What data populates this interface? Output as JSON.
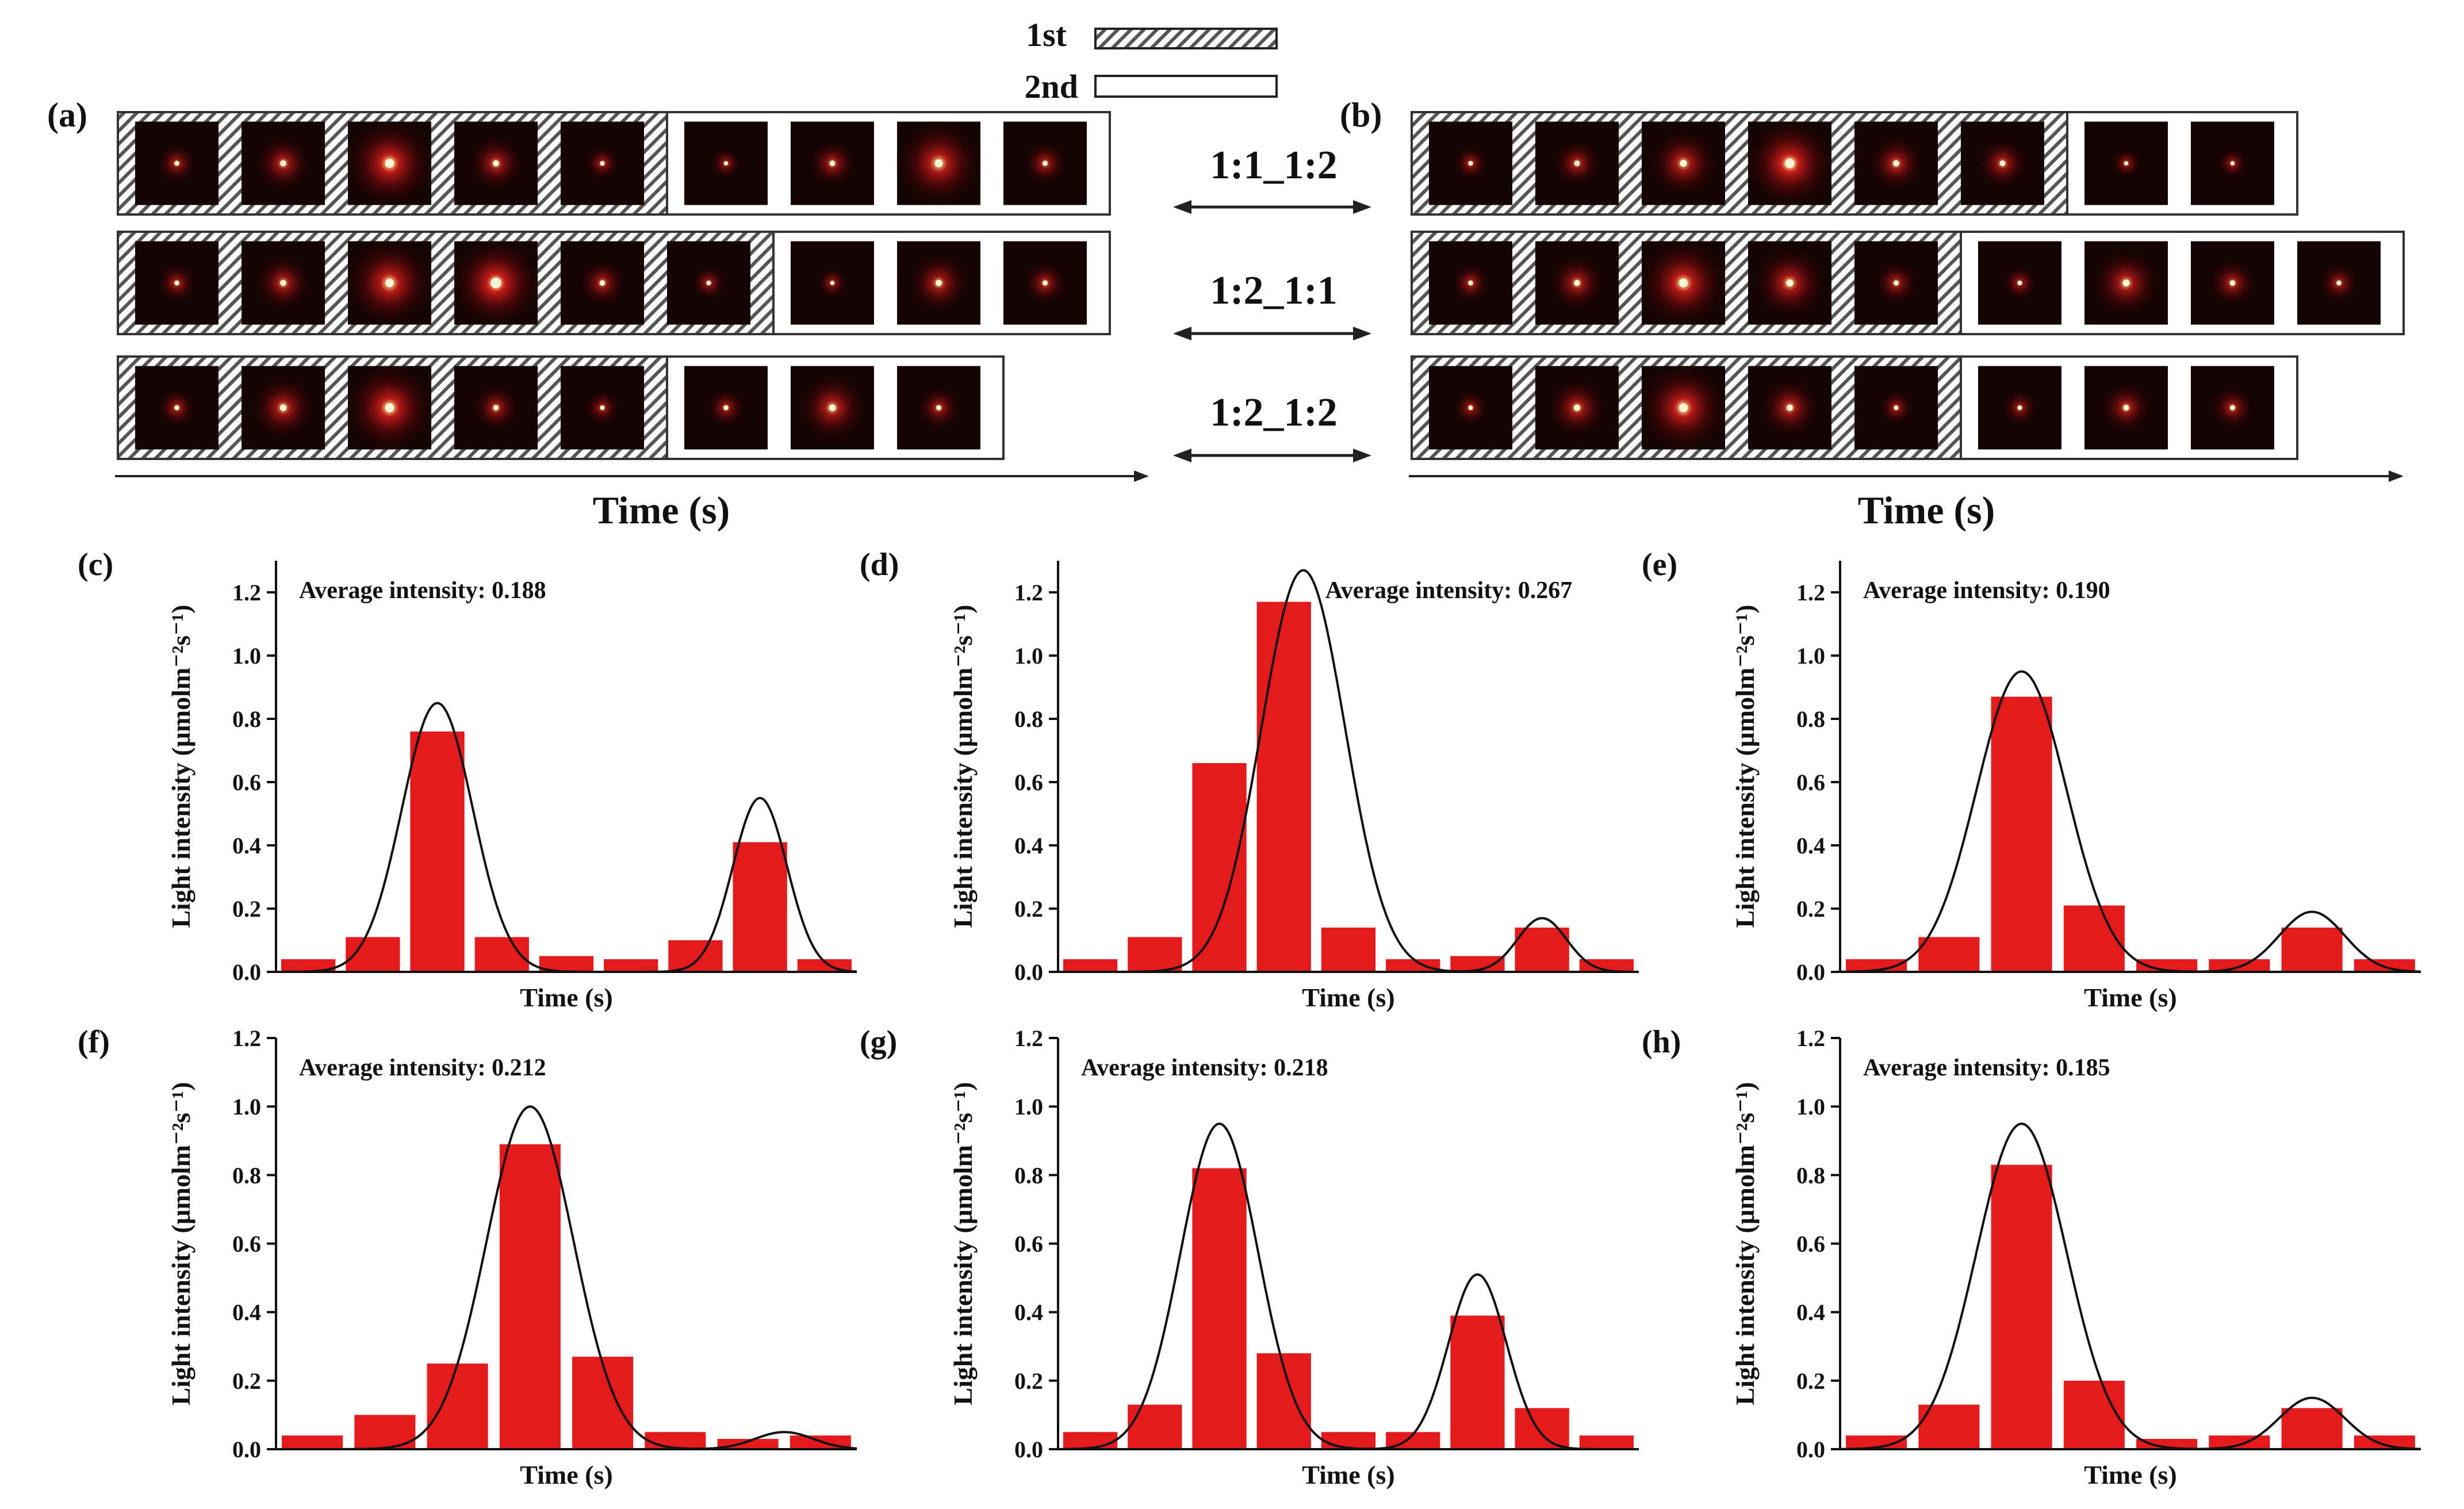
{
  "legend": {
    "first_label": "1st",
    "second_label": "2nd"
  },
  "panel_top": [
    {
      "label": "(a)",
      "xlabel": "Time (s)",
      "rows": [
        {
          "first": [
            0.25,
            0.45,
            1.0,
            0.45,
            0.2
          ],
          "second": [
            0.15,
            0.35,
            0.8,
            0.3
          ]
        },
        {
          "first": [
            0.25,
            0.45,
            0.9,
            1.3,
            0.35,
            0.2
          ],
          "second": [
            0.15,
            0.5,
            0.3
          ]
        },
        {
          "first": [
            0.25,
            0.55,
            1.0,
            0.35,
            0.2
          ],
          "second": [
            0.25,
            0.6,
            0.3
          ]
        }
      ]
    },
    {
      "label": "(b)",
      "xlabel": "Time (s)",
      "rows": [
        {
          "first": [
            0.2,
            0.35,
            0.6,
            1.1,
            0.45,
            0.4
          ],
          "second": [
            0.15,
            0.15
          ]
        },
        {
          "first": [
            0.25,
            0.45,
            0.95,
            0.65,
            0.3
          ],
          "second": [
            0.2,
            0.6,
            0.35,
            0.25
          ]
        },
        {
          "first": [
            0.2,
            0.5,
            0.95,
            0.5,
            0.2
          ],
          "second": [
            0.2,
            0.4,
            0.3
          ]
        }
      ]
    }
  ],
  "ratios": [
    "1:1_1:2",
    "1:2_1:1",
    "1:2_1:2"
  ],
  "chart_data": [
    {
      "label": "(c)",
      "type": "bar",
      "annotation": "Average intensity: 0.188",
      "xlabel": "Time (s)",
      "ylabel": "Light intensity (μmolm⁻²s⁻¹)",
      "ylim": [
        0,
        1.3
      ],
      "yticks": [
        "0.0",
        "0.2",
        "0.4",
        "0.6",
        "0.8",
        "1.0",
        "1.2"
      ],
      "values": [
        0.04,
        0.11,
        0.76,
        0.11,
        0.05,
        0.04,
        0.1,
        0.41,
        0.04
      ],
      "fit_peaks": [
        {
          "center": 2,
          "amp": 0.85,
          "sigma": 0.55
        },
        {
          "center": 7,
          "amp": 0.55,
          "sigma": 0.42
        }
      ]
    },
    {
      "label": "(d)",
      "type": "bar",
      "annotation": "Average intensity: 0.267",
      "xlabel": "Time (s)",
      "ylabel": "Light intensity (μmolm⁻²s⁻¹)",
      "ylim": [
        0,
        1.3
      ],
      "yticks": [
        "0.0",
        "0.2",
        "0.4",
        "0.6",
        "0.8",
        "1.0",
        "1.2"
      ],
      "values": [
        0.04,
        0.11,
        0.66,
        1.17,
        0.14,
        0.04,
        0.05,
        0.14,
        0.04
      ],
      "fit_peaks": [
        {
          "center": 3.3,
          "amp": 1.27,
          "sigma": 0.65
        },
        {
          "center": 7,
          "amp": 0.17,
          "sigma": 0.38
        }
      ]
    },
    {
      "label": "(e)",
      "type": "bar",
      "annotation": "Average intensity: 0.190",
      "xlabel": "Time (s)",
      "ylabel": "Light intensity (μmolm⁻²s⁻¹)",
      "ylim": [
        0,
        1.3
      ],
      "yticks": [
        "0.0",
        "0.2",
        "0.4",
        "0.6",
        "0.8",
        "1.0",
        "1.2"
      ],
      "values": [
        0.04,
        0.11,
        0.87,
        0.21,
        0.04,
        0.04,
        0.14,
        0.04
      ],
      "fit_peaks": [
        {
          "center": 2,
          "amp": 0.95,
          "sigma": 0.62
        },
        {
          "center": 6,
          "amp": 0.19,
          "sigma": 0.45
        }
      ]
    },
    {
      "label": "(f)",
      "type": "bar",
      "annotation": "Average intensity: 0.212",
      "xlabel": "Time (s)",
      "ylabel": "Light intensity (μmolm⁻²s⁻¹)",
      "ylim": [
        0,
        1.2
      ],
      "yticks": [
        "0.0",
        "0.2",
        "0.4",
        "0.6",
        "0.8",
        "1.0",
        "1.2"
      ],
      "values": [
        0.04,
        0.1,
        0.25,
        0.89,
        0.27,
        0.05,
        0.03,
        0.04
      ],
      "fit_peaks": [
        {
          "center": 3,
          "amp": 1.0,
          "sigma": 0.6
        },
        {
          "center": 6.5,
          "amp": 0.05,
          "sigma": 0.4
        }
      ]
    },
    {
      "label": "(g)",
      "type": "bar",
      "annotation": "Average intensity: 0.218",
      "xlabel": "Time (s)",
      "ylabel": "Light intensity (μmolm⁻²s⁻¹)",
      "ylim": [
        0,
        1.2
      ],
      "yticks": [
        "0.0",
        "0.2",
        "0.4",
        "0.6",
        "0.8",
        "1.0",
        "1.2"
      ],
      "values": [
        0.05,
        0.13,
        0.82,
        0.28,
        0.05,
        0.05,
        0.39,
        0.12,
        0.04
      ],
      "fit_peaks": [
        {
          "center": 2,
          "amp": 0.95,
          "sigma": 0.6
        },
        {
          "center": 6,
          "amp": 0.51,
          "sigma": 0.45
        }
      ]
    },
    {
      "label": "(h)",
      "type": "bar",
      "annotation": "Average intensity: 0.185",
      "xlabel": "Time (s)",
      "ylabel": "Light intensity (μmolm⁻²s⁻¹)",
      "ylim": [
        0,
        1.2
      ],
      "yticks": [
        "0.0",
        "0.2",
        "0.4",
        "0.6",
        "0.8",
        "1.0",
        "1.2"
      ],
      "values": [
        0.04,
        0.13,
        0.83,
        0.2,
        0.03,
        0.04,
        0.12,
        0.04
      ],
      "fit_peaks": [
        {
          "center": 2,
          "amp": 0.95,
          "sigma": 0.62
        },
        {
          "center": 6,
          "amp": 0.15,
          "sigma": 0.45
        }
      ]
    }
  ]
}
